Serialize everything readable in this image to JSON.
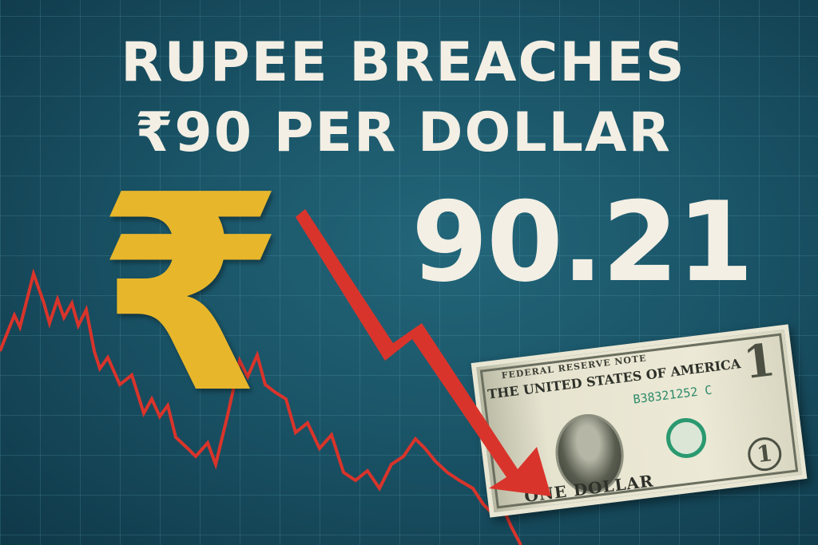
{
  "headline": {
    "line1": "RUPEE BREACHES",
    "line2": "₹90 PER DOLLAR"
  },
  "rate": "90.21",
  "rupee_symbol": "₹",
  "bill": {
    "top_text": "FEDERAL RESERVE NOTE",
    "country": "THE UNITED STATES OF AMERICA",
    "serial": "B38321252 C",
    "denomination": "1",
    "bottom_text": "ONE DOLLAR"
  },
  "colors": {
    "background": "#1a5467",
    "headline": "#f3efe4",
    "rupee": "#e7b62b",
    "trend": "#d9342b"
  }
}
